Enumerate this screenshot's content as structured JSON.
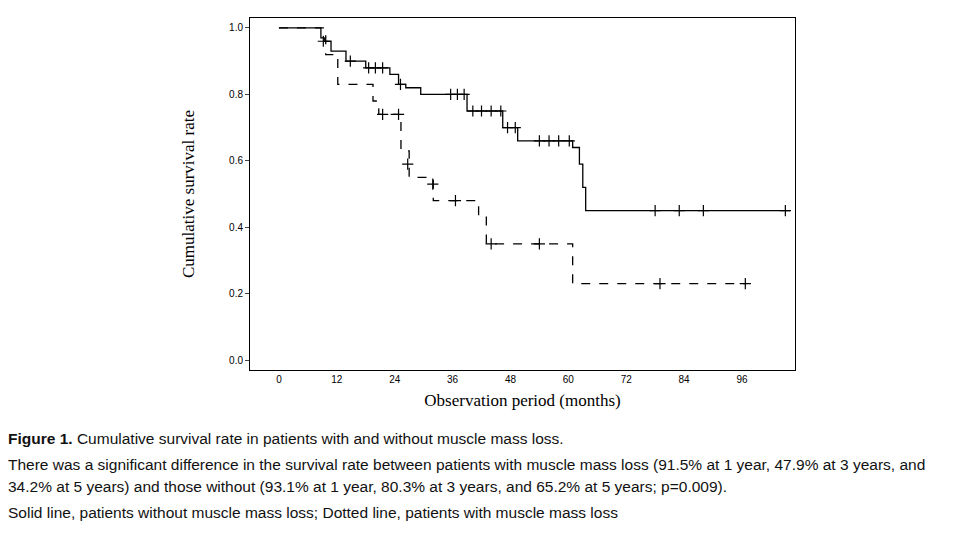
{
  "chart_data": {
    "type": "step",
    "x_label": "Observation period (months)",
    "y_label": "Cumulative survival rate",
    "xlim": [
      -6,
      107
    ],
    "ylim": [
      -0.03,
      1.03
    ],
    "xticks": [
      0,
      12,
      24,
      36,
      48,
      60,
      72,
      84,
      96
    ],
    "yticks": [
      {
        "value": 0,
        "label": "0.0"
      },
      {
        "value": 0.2,
        "label": "0.2"
      },
      {
        "value": 0.4,
        "label": "0.4"
      },
      {
        "value": 0.6,
        "label": "0.6"
      },
      {
        "value": 0.8,
        "label": "0.8"
      },
      {
        "value": 1,
        "label": "1.0"
      }
    ],
    "grid": false,
    "series": [
      {
        "line_style": "solid",
        "color": "#000000",
        "marker": "cross",
        "x": [
          0,
          8.7,
          9.4,
          10.8,
          13.9,
          18,
          23,
          24.8,
          26.3,
          29.4,
          39,
          46.4,
          49.5,
          60.9,
          62.3,
          63,
          63.6,
          106
        ],
        "values": [
          1.0,
          0.97,
          0.96,
          0.93,
          0.9,
          0.88,
          0.86,
          0.83,
          0.82,
          0.8,
          0.75,
          0.7,
          0.66,
          0.64,
          0.59,
          0.52,
          0.45,
          0.45
        ],
        "censored_x": [
          9.2,
          14.8,
          18.6,
          20,
          21.5,
          25.2,
          35.6,
          37,
          38.4,
          40.2,
          42,
          44,
          46,
          47.4,
          49,
          54,
          56,
          58,
          60.2,
          78,
          83,
          88,
          105
        ],
        "censored_values": [
          0.96,
          0.9,
          0.88,
          0.88,
          0.88,
          0.83,
          0.8,
          0.8,
          0.8,
          0.75,
          0.75,
          0.75,
          0.75,
          0.7,
          0.7,
          0.66,
          0.66,
          0.66,
          0.66,
          0.45,
          0.45,
          0.45,
          0.45
        ]
      },
      {
        "line_style": "dash",
        "color": "#000000",
        "marker": "cross",
        "x": [
          0,
          9.7,
          12.2,
          19.5,
          20.7,
          25.3,
          27,
          32,
          41.4,
          43,
          60.9,
          96.7
        ],
        "values": [
          1.0,
          0.92,
          0.83,
          0.78,
          0.74,
          0.63,
          0.55,
          0.48,
          0.43,
          0.35,
          0.23,
          0.23
        ],
        "censored_x": [
          21.5,
          24.8,
          26.7,
          31.9,
          36.6,
          44,
          54,
          79,
          96.7
        ],
        "censored_values": [
          0.74,
          0.74,
          0.59,
          0.53,
          0.48,
          0.35,
          0.35,
          0.23,
          0.23
        ]
      }
    ],
    "caption": {
      "label": "Figure 1.",
      "title": "Cumulative survival rate in patients with and without muscle mass loss.",
      "text": "There was a significant difference in the survival rate between patients with muscle mass loss (91.5% at 1 year, 47.9% at 3 years, and 34.2% at 5 years) and those without (93.1% at 1 year, 80.3% at 3 years, and 65.2% at 5 years; p=0.009).",
      "note": "Solid line, patients without muscle mass loss; Dotted line, patients with muscle mass loss"
    }
  }
}
